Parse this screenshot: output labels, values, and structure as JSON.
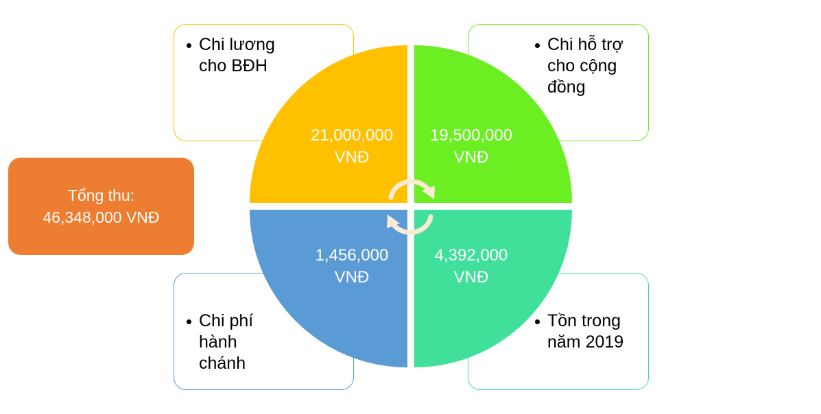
{
  "total": {
    "label": "Tổng thu:",
    "value": "46,348,000 VNĐ",
    "color": "#ED7D31"
  },
  "quadrants": [
    {
      "id": "top-left",
      "amount": "21,000,000",
      "unit": "VNĐ",
      "color": "#FFC000",
      "category": "Chi lương\ncho BĐH"
    },
    {
      "id": "top-right",
      "amount": "19,500,000",
      "unit": "VNĐ",
      "color": "#6BEE22",
      "category": "Chi hỗ trợ\ncho cộng\nđồng"
    },
    {
      "id": "bottom-left",
      "amount": "1,456,000",
      "unit": "VNĐ",
      "color": "#5B9BD5",
      "category": "Chi phí\nhành\nchánh"
    },
    {
      "id": "bottom-right",
      "amount": "4,392,000",
      "unit": "VNĐ",
      "color": "#40E09A",
      "category": "Tồn trong\nnăm 2019"
    }
  ],
  "cycle_arrows_color": "#FBEBD5"
}
